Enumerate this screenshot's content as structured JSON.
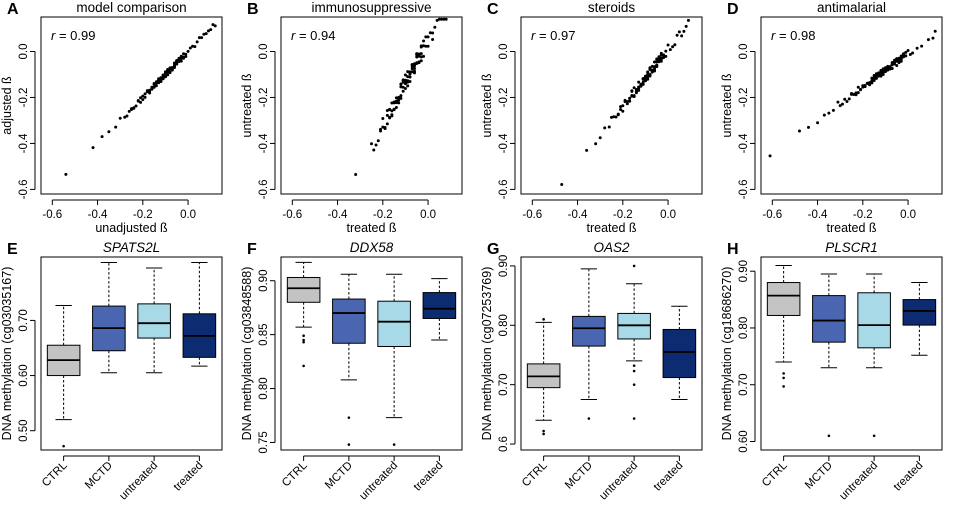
{
  "figure": {
    "width": 957,
    "height": 506
  },
  "chart_data": [
    {
      "type": "scatter",
      "letter": "A",
      "title": "model comparison",
      "r_prefix": "r",
      "r_value": "= 0.99",
      "xlabel": "unadjusted ß",
      "ylabel": "adjusted ß",
      "xlim": [
        -0.65,
        0.15
      ],
      "ylim": [
        -0.62,
        0.15
      ],
      "xticks": [
        -0.6,
        -0.4,
        -0.2,
        0.0
      ],
      "xtick_labels": [
        "-0.6",
        "-0.4",
        "-0.2",
        "0.0"
      ],
      "yticks": [
        -0.6,
        -0.4,
        -0.2,
        0.0
      ],
      "ytick_labels": [
        "-0.6",
        "-0.4",
        "-0.2",
        "0.0"
      ],
      "slope": 1.0,
      "intercept": 0.0,
      "noise": 0.012,
      "x": [
        -0.54,
        -0.42,
        -0.38,
        -0.35,
        -0.32,
        -0.3,
        -0.28,
        -0.27,
        -0.25,
        -0.24,
        -0.22,
        -0.21,
        -0.2,
        -0.19,
        -0.18,
        -0.17,
        -0.16,
        -0.15,
        -0.14,
        -0.13,
        -0.12,
        -0.11,
        -0.1,
        -0.09,
        -0.08,
        -0.07,
        -0.06,
        -0.05,
        -0.04,
        -0.03,
        -0.02,
        -0.01,
        0.0,
        0.02,
        0.04,
        0.06,
        0.08,
        0.1,
        -0.12,
        -0.11,
        -0.1,
        -0.09,
        -0.08,
        -0.07,
        -0.06,
        -0.05,
        -0.04,
        -0.03,
        -0.09,
        -0.08,
        -0.07,
        -0.06,
        -0.05,
        -0.04,
        -0.1,
        -0.11,
        -0.13,
        -0.14,
        -0.15,
        -0.16,
        -0.17,
        -0.18,
        -0.12,
        -0.08,
        -0.06,
        -0.04,
        -0.02,
        -0.07,
        -0.05,
        -0.03,
        -0.09,
        -0.1,
        -0.2,
        -0.22,
        -0.24,
        -0.26,
        0.09,
        0.11,
        0.12,
        0.07,
        0.05,
        0.03,
        0.01,
        -0.01,
        -0.03,
        -0.05,
        -0.07,
        -0.09,
        -0.11,
        -0.13,
        -0.15,
        -0.06,
        -0.08,
        -0.04,
        -0.1,
        -0.12,
        -0.14,
        -0.16,
        -0.02,
        -0.06,
        -0.09,
        -0.08,
        -0.07,
        -0.05,
        -0.04,
        -0.03,
        -0.1,
        -0.11,
        -0.12,
        -0.13,
        -0.14,
        -0.15,
        -0.16,
        -0.17,
        -0.19,
        -0.21,
        -0.23,
        -0.25
      ]
    },
    {
      "type": "scatter",
      "letter": "B",
      "title": "immunosuppressive",
      "r_prefix": "r",
      "r_value": "= 0.94",
      "xlabel": "treated ß",
      "ylabel": "untreated ß",
      "xlim": [
        -0.65,
        0.15
      ],
      "ylim": [
        -0.62,
        0.15
      ],
      "xticks": [
        -0.6,
        -0.4,
        -0.2,
        0.0
      ],
      "xtick_labels": [
        "-0.6",
        "-0.4",
        "-0.2",
        "0.0"
      ],
      "yticks": [
        -0.6,
        -0.4,
        -0.2,
        0.0
      ],
      "ytick_labels": [
        "-0.6",
        "-0.4",
        "-0.2",
        "0.0"
      ],
      "slope": 1.85,
      "intercept": 0.05,
      "noise": 0.035,
      "x": [
        -0.32,
        -0.25,
        -0.22,
        -0.21,
        -0.2,
        -0.19,
        -0.18,
        -0.17,
        -0.16,
        -0.15,
        -0.14,
        -0.13,
        -0.12,
        -0.11,
        -0.1,
        -0.09,
        -0.08,
        -0.07,
        -0.06,
        -0.05,
        -0.04,
        -0.03,
        -0.02,
        -0.01,
        0.0,
        0.01,
        0.02,
        0.04,
        0.06,
        0.08,
        -0.12,
        -0.11,
        -0.1,
        -0.09,
        -0.08,
        -0.07,
        -0.06,
        -0.05,
        -0.04,
        -0.03,
        -0.09,
        -0.08,
        -0.07,
        -0.06,
        -0.05,
        -0.04,
        -0.1,
        -0.11,
        -0.13,
        -0.14,
        -0.15,
        -0.16,
        -0.17,
        -0.18,
        -0.12,
        -0.08,
        -0.06,
        -0.04,
        -0.02,
        -0.07,
        -0.05,
        -0.03,
        -0.09,
        -0.1,
        -0.2,
        -0.19,
        -0.18,
        -0.17,
        0.03,
        0.05,
        0.07,
        0.02,
        0.0,
        -0.01,
        -0.03,
        -0.05,
        -0.07,
        -0.09,
        -0.11,
        -0.13,
        -0.15,
        -0.06,
        -0.08,
        -0.04,
        -0.1,
        -0.12,
        -0.14,
        -0.16,
        -0.02,
        -0.06,
        -0.09,
        -0.08,
        -0.07,
        -0.05,
        -0.04,
        -0.03,
        -0.1,
        -0.11,
        -0.12,
        -0.13,
        -0.14,
        -0.15,
        -0.16,
        -0.17,
        -0.19,
        -0.21,
        -0.23,
        -0.24
      ]
    },
    {
      "type": "scatter",
      "letter": "C",
      "title": "steroids",
      "r_prefix": "r",
      "r_value": "= 0.97",
      "xlabel": "treated ß",
      "ylabel": "untreated ß",
      "xlim": [
        -0.65,
        0.15
      ],
      "ylim": [
        -0.62,
        0.15
      ],
      "xticks": [
        -0.6,
        -0.4,
        -0.2,
        0.0
      ],
      "xtick_labels": [
        "-0.6",
        "-0.4",
        "-0.2",
        "0.0"
      ],
      "yticks": [
        -0.6,
        -0.4,
        -0.2,
        0.0
      ],
      "ytick_labels": [
        "-0.6",
        "-0.4",
        "-0.2",
        "0.0"
      ],
      "slope": 1.25,
      "intercept": 0.01,
      "noise": 0.02,
      "x": [
        -0.47,
        -0.36,
        -0.32,
        -0.3,
        -0.28,
        -0.26,
        -0.25,
        -0.23,
        -0.22,
        -0.21,
        -0.2,
        -0.19,
        -0.18,
        -0.17,
        -0.16,
        -0.15,
        -0.14,
        -0.13,
        -0.12,
        -0.11,
        -0.1,
        -0.09,
        -0.08,
        -0.07,
        -0.06,
        -0.05,
        -0.04,
        -0.03,
        -0.02,
        -0.01,
        0.0,
        0.02,
        0.04,
        0.06,
        0.08,
        0.09,
        -0.12,
        -0.11,
        -0.1,
        -0.09,
        -0.08,
        -0.07,
        -0.06,
        -0.05,
        -0.04,
        -0.03,
        -0.09,
        -0.08,
        -0.07,
        -0.06,
        -0.05,
        -0.04,
        -0.1,
        -0.11,
        -0.13,
        -0.14,
        -0.15,
        -0.16,
        -0.17,
        -0.18,
        -0.12,
        -0.08,
        -0.06,
        -0.04,
        -0.02,
        -0.07,
        -0.05,
        -0.03,
        -0.09,
        -0.1,
        -0.2,
        -0.22,
        -0.24,
        0.07,
        0.05,
        0.03,
        0.01,
        -0.01,
        -0.03,
        -0.05,
        -0.07,
        -0.09,
        -0.11,
        -0.13,
        -0.15,
        -0.06,
        -0.08,
        -0.04,
        -0.1,
        -0.12,
        -0.14,
        -0.16,
        -0.02,
        -0.06,
        -0.09,
        -0.08,
        -0.07,
        -0.05,
        -0.04,
        -0.03,
        -0.1,
        -0.11,
        -0.12,
        -0.13,
        -0.14,
        -0.15,
        -0.16,
        -0.17,
        -0.19,
        -0.21
      ]
    },
    {
      "type": "scatter",
      "letter": "D",
      "title": "antimalarial",
      "r_prefix": "r",
      "r_value": "= 0.98",
      "xlabel": "treated ß",
      "ylabel": "untreated ß",
      "xlim": [
        -0.65,
        0.15
      ],
      "ylim": [
        -0.62,
        0.15
      ],
      "xticks": [
        -0.6,
        -0.4,
        -0.2,
        0.0
      ],
      "xtick_labels": [
        "-0.6",
        "-0.4",
        "-0.2",
        "0.0"
      ],
      "yticks": [
        -0.6,
        -0.4,
        -0.2,
        0.0
      ],
      "ytick_labels": [
        "-0.6",
        "-0.4",
        "-0.2",
        "0.0"
      ],
      "slope": 0.72,
      "intercept": -0.01,
      "noise": 0.015,
      "x": [
        -0.61,
        -0.48,
        -0.44,
        -0.4,
        -0.37,
        -0.35,
        -0.33,
        -0.31,
        -0.29,
        -0.27,
        -0.25,
        -0.24,
        -0.23,
        -0.22,
        -0.21,
        -0.2,
        -0.19,
        -0.18,
        -0.17,
        -0.16,
        -0.15,
        -0.14,
        -0.13,
        -0.12,
        -0.11,
        -0.1,
        -0.09,
        -0.08,
        -0.07,
        -0.06,
        -0.05,
        -0.04,
        -0.03,
        -0.02,
        -0.01,
        0.0,
        0.02,
        0.04,
        0.06,
        0.09,
        0.11,
        0.12,
        -0.12,
        -0.11,
        -0.1,
        -0.09,
        -0.08,
        -0.07,
        -0.06,
        -0.05,
        -0.04,
        -0.03,
        -0.09,
        -0.08,
        -0.07,
        -0.06,
        -0.05,
        -0.04,
        -0.1,
        -0.11,
        -0.13,
        -0.14,
        -0.15,
        -0.16,
        -0.17,
        -0.18,
        -0.12,
        -0.08,
        -0.06,
        -0.04,
        -0.02,
        -0.07,
        -0.05,
        -0.03,
        -0.09,
        -0.1,
        -0.2,
        -0.22,
        -0.24,
        -0.26,
        -0.28,
        -0.3,
        0.01,
        -0.01,
        -0.03,
        -0.05,
        -0.07,
        -0.09,
        -0.11,
        -0.13,
        -0.15,
        -0.06,
        -0.08,
        -0.04,
        -0.1,
        -0.12,
        -0.14,
        -0.16,
        -0.02,
        -0.06,
        -0.09,
        -0.08,
        -0.07,
        -0.05,
        -0.04,
        -0.03,
        -0.1,
        -0.11,
        -0.12,
        -0.13,
        -0.14,
        -0.15,
        -0.16,
        -0.17,
        -0.19,
        -0.21,
        -0.23,
        -0.25
      ]
    },
    {
      "type": "box",
      "letter": "E",
      "title": "SPATS2L",
      "ylabel": "DNA methylation (cg03035167)",
      "ylim": [
        0.465,
        0.815
      ],
      "yticks": [
        0.5,
        0.6,
        0.7
      ],
      "ytick_labels": [
        "0.50",
        "0.60",
        "0.70"
      ],
      "categories": [
        "CTRL",
        "MCTD",
        "untreated",
        "treated"
      ],
      "colors": [
        "#c3c3c3",
        "#4a66b0",
        "#a7d9e6",
        "#0c2b70"
      ],
      "boxes": [
        {
          "whislo": 0.52,
          "q1": 0.6,
          "med": 0.628,
          "q3": 0.655,
          "whishi": 0.727,
          "outliers": [
            0.472
          ]
        },
        {
          "whislo": 0.605,
          "q1": 0.645,
          "med": 0.686,
          "q3": 0.726,
          "whishi": 0.805,
          "outliers": []
        },
        {
          "whislo": 0.605,
          "q1": 0.668,
          "med": 0.695,
          "q3": 0.73,
          "whishi": 0.795,
          "outliers": []
        },
        {
          "whislo": 0.617,
          "q1": 0.633,
          "med": 0.672,
          "q3": 0.712,
          "whishi": 0.805,
          "outliers": []
        }
      ]
    },
    {
      "type": "box",
      "letter": "F",
      "title": "DDX58",
      "ylabel": "DNA methylation (cg03848588)",
      "ylim": [
        0.743,
        0.922
      ],
      "yticks": [
        0.75,
        0.8,
        0.85,
        0.9
      ],
      "ytick_labels": [
        "0.75",
        "0.80",
        "0.85",
        "0.90"
      ],
      "categories": [
        "CTRL",
        "MCTD",
        "untreated",
        "treated"
      ],
      "colors": [
        "#c3c3c3",
        "#4a66b0",
        "#a7d9e6",
        "#0c2b70"
      ],
      "boxes": [
        {
          "whislo": 0.857,
          "q1": 0.88,
          "med": 0.893,
          "q3": 0.903,
          "whishi": 0.917,
          "outliers": [
            0.849,
            0.845,
            0.843,
            0.821
          ]
        },
        {
          "whislo": 0.808,
          "q1": 0.842,
          "med": 0.87,
          "q3": 0.883,
          "whishi": 0.906,
          "outliers": [
            0.773,
            0.748
          ]
        },
        {
          "whislo": 0.773,
          "q1": 0.839,
          "med": 0.862,
          "q3": 0.881,
          "whishi": 0.906,
          "outliers": [
            0.748
          ]
        },
        {
          "whislo": 0.845,
          "q1": 0.865,
          "med": 0.874,
          "q3": 0.889,
          "whishi": 0.902,
          "outliers": []
        }
      ]
    },
    {
      "type": "box",
      "letter": "G",
      "title": "OAS2",
      "ylabel": "DNA methylation (cg07253769)",
      "ylim": [
        0.59,
        0.915
      ],
      "yticks": [
        0.6,
        0.7,
        0.8,
        0.9
      ],
      "ytick_labels": [
        "0.6",
        "0.70",
        "0.80",
        "0.90"
      ],
      "categories": [
        "CTRL",
        "MCTD",
        "untreated",
        "treated"
      ],
      "colors": [
        "#c3c3c3",
        "#4a66b0",
        "#a7d9e6",
        "#0c2b70"
      ],
      "boxes": [
        {
          "whislo": 0.64,
          "q1": 0.695,
          "med": 0.714,
          "q3": 0.735,
          "whishi": 0.805,
          "outliers": [
            0.81,
            0.622,
            0.617
          ]
        },
        {
          "whislo": 0.675,
          "q1": 0.765,
          "med": 0.795,
          "q3": 0.815,
          "whishi": 0.895,
          "outliers": [
            0.643
          ]
        },
        {
          "whislo": 0.74,
          "q1": 0.777,
          "med": 0.8,
          "q3": 0.82,
          "whishi": 0.87,
          "outliers": [
            0.9,
            0.732,
            0.723,
            0.7,
            0.643
          ]
        },
        {
          "whislo": 0.675,
          "q1": 0.712,
          "med": 0.755,
          "q3": 0.793,
          "whishi": 0.832,
          "outliers": []
        }
      ]
    },
    {
      "type": "box",
      "letter": "H",
      "title": "PLSCR1",
      "ylabel": "DNA methylation (cg18686270)",
      "ylim": [
        0.585,
        0.925
      ],
      "yticks": [
        0.6,
        0.7,
        0.8,
        0.9
      ],
      "ytick_labels": [
        "0.60",
        "0.70",
        "0.80",
        "0.90"
      ],
      "categories": [
        "CTRL",
        "MCTD",
        "untreated",
        "treated"
      ],
      "colors": [
        "#c3c3c3",
        "#4a66b0",
        "#a7d9e6",
        "#0c2b70"
      ],
      "boxes": [
        {
          "whislo": 0.74,
          "q1": 0.822,
          "med": 0.857,
          "q3": 0.88,
          "whishi": 0.91,
          "outliers": [
            0.72,
            0.712,
            0.697
          ]
        },
        {
          "whislo": 0.73,
          "q1": 0.775,
          "med": 0.813,
          "q3": 0.857,
          "whishi": 0.895,
          "outliers": [
            0.61
          ]
        },
        {
          "whislo": 0.73,
          "q1": 0.765,
          "med": 0.805,
          "q3": 0.862,
          "whishi": 0.895,
          "outliers": [
            0.61
          ]
        },
        {
          "whislo": 0.752,
          "q1": 0.805,
          "med": 0.83,
          "q3": 0.85,
          "whishi": 0.88,
          "outliers": []
        }
      ]
    }
  ]
}
